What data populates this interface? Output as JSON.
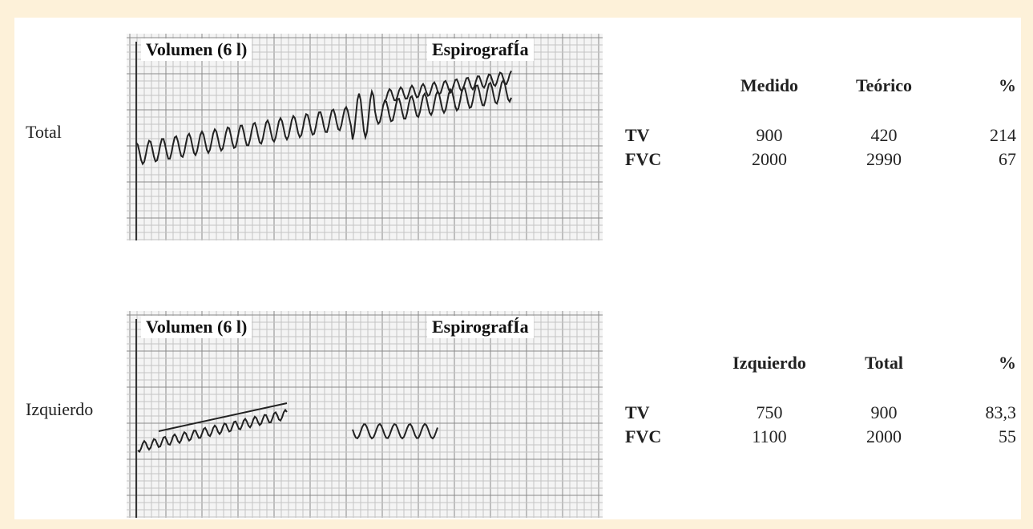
{
  "panels": [
    {
      "label": "Total",
      "image": {
        "left_label": "Volumen (6 l)",
        "right_label": "EspirografÍa"
      },
      "table": {
        "header": [
          "Medido",
          "Teórico",
          "%"
        ],
        "rows": [
          [
            "TV",
            "900",
            "420",
            "214"
          ],
          [
            "FVC",
            "2000",
            "2990",
            "67"
          ]
        ]
      }
    },
    {
      "label": "Izquierdo",
      "image": {
        "left_label": "Volumen (6 l)",
        "right_label": "EspirografÍa"
      },
      "table": {
        "header": [
          "Izquierdo",
          "Total",
          "%"
        ],
        "rows": [
          [
            "TV",
            "750",
            "900",
            "83,3"
          ],
          [
            "FVC",
            "1100",
            "2000",
            "55"
          ]
        ]
      }
    }
  ]
}
